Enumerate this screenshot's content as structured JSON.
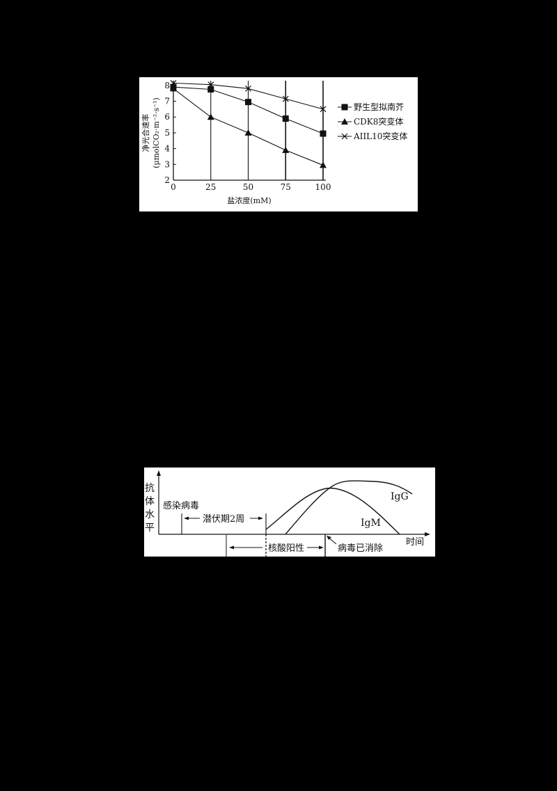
{
  "chart_data": [
    {
      "type": "line",
      "title": "",
      "xlabel": "盐浓度(mM)",
      "ylabel": "净光合速率(μmolCO₂·m⁻²·s⁻¹)",
      "ylabel_line1": "净光合速率",
      "ylabel_line2": "(μmolCO₂·m⁻²·s⁻¹)",
      "x": [
        0,
        25,
        50,
        75,
        100
      ],
      "x_tick_labels": [
        "0",
        "25",
        "50",
        "75",
        "100"
      ],
      "y_tick_labels": [
        "2",
        "3",
        "4",
        "5",
        "6",
        "7",
        "8"
      ],
      "ylim": [
        2,
        8.3
      ],
      "xlim": [
        0,
        100
      ],
      "grid": "vertical lines at each x tick",
      "legend_position": "right",
      "series": [
        {
          "name": "野生型拟南芥",
          "marker": "square",
          "values": [
            7.9,
            7.75,
            6.95,
            5.9,
            4.95
          ]
        },
        {
          "name": "CDK8突变体",
          "marker": "triangle",
          "values": [
            7.8,
            6.0,
            5.0,
            3.9,
            2.95
          ]
        },
        {
          "name": "AIIL10突变体",
          "marker": "x",
          "values": [
            8.15,
            8.05,
            7.8,
            7.15,
            6.5
          ]
        }
      ]
    },
    {
      "type": "line",
      "title": "",
      "xlabel": "时间",
      "ylabel": "抗体水平",
      "ylabel_chars": [
        "抗",
        "体",
        "水",
        "平"
      ],
      "series": [
        {
          "name": "IgM",
          "shape": "rises at end of incubation, peaks near virus clearance, then declines to zero"
        },
        {
          "name": "IgG",
          "shape": "rises later than IgM, plateaus high, slowly declines"
        }
      ],
      "annotations": {
        "infection": "感染病毒",
        "incubation": "潜伏期2周",
        "nucleic_positive": "核酸阳性",
        "virus_cleared": "病毒已消除",
        "igg_label": "IgG",
        "igm_label": "IgM"
      }
    }
  ]
}
